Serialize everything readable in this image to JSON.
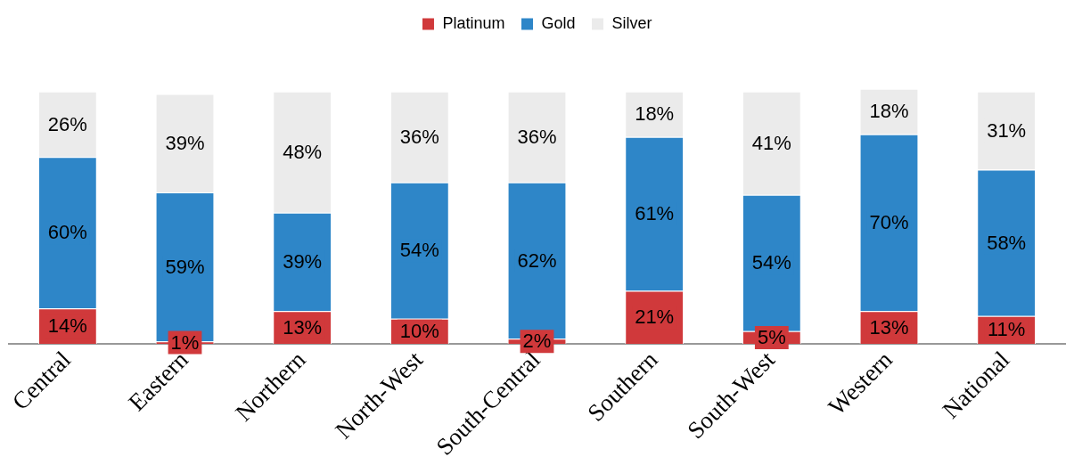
{
  "chart_data": {
    "type": "bar",
    "stacked": true,
    "grid": false,
    "legend": "top",
    "tick_labels": "x",
    "categories": [
      "Central",
      "Eastern",
      "Northern",
      "North-West",
      "South-Central",
      "Southern",
      "South-West",
      "Western",
      "National"
    ],
    "series": [
      {
        "name": "Platinum",
        "color": "#d0393b",
        "values": [
          14,
          1,
          13,
          10,
          2,
          21,
          5,
          13,
          11
        ],
        "value_labels": [
          "14%",
          "1%",
          "13%",
          "10%",
          "2%",
          "21%",
          "5%",
          "13%",
          "11%"
        ]
      },
      {
        "name": "Gold",
        "color": "#2e86c8",
        "values": [
          60,
          59,
          39,
          54,
          62,
          61,
          54,
          70,
          58
        ],
        "value_labels": [
          "60%",
          "59%",
          "39%",
          "54%",
          "62%",
          "61%",
          "54%",
          "70%",
          "58%"
        ]
      },
      {
        "name": "Silver",
        "color": "#ebebeb",
        "values": [
          26,
          39,
          48,
          36,
          36,
          18,
          41,
          18,
          31
        ],
        "value_labels": [
          "26%",
          "39%",
          "48%",
          "36%",
          "36%",
          "18%",
          "41%",
          "18%",
          "31%"
        ]
      }
    ]
  }
}
